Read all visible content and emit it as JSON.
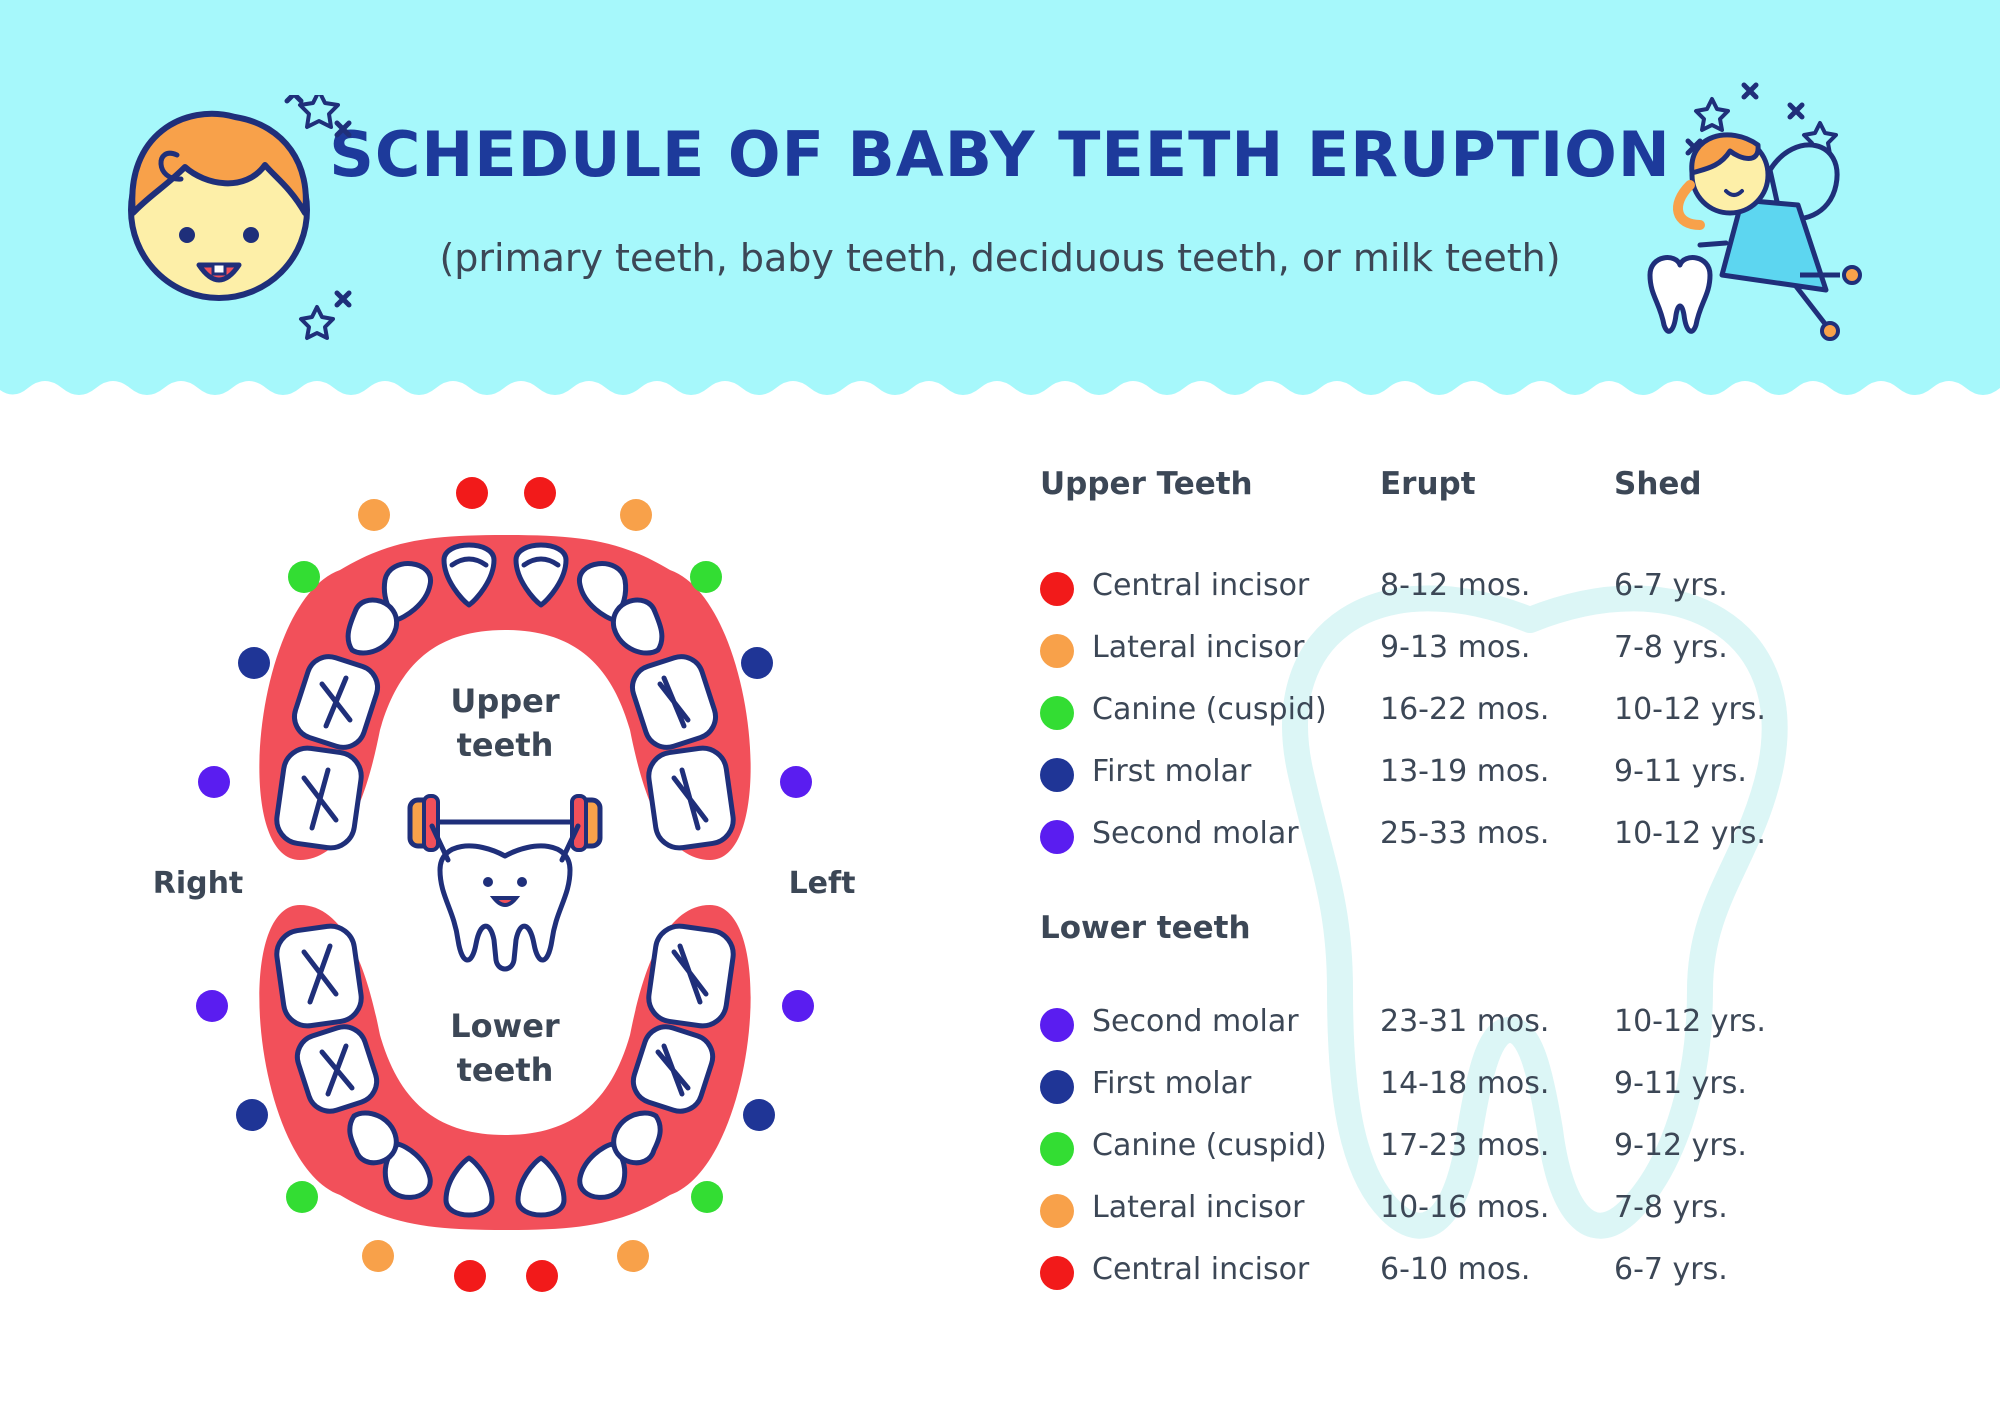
{
  "title": "SCHEDULE OF BABY TEETH ERUPTION",
  "subtitle": "(primary teeth, baby teeth, deciduous teeth, or milk teeth)",
  "colors": {
    "header_bg": "#a6f8fb",
    "title": "#1d3a9b",
    "gum": "#f2505a",
    "outline": "#1f2f7a",
    "central_incisor": "#f21a1a",
    "lateral_incisor": "#f8a14a",
    "canine": "#33dd33",
    "first_molar": "#1f3596",
    "second_molar": "#5a1df0",
    "watermark": "#dcf6f6"
  },
  "diagram": {
    "upper_label": [
      "Upper",
      "teeth"
    ],
    "lower_label": [
      "Lower",
      "teeth"
    ],
    "side_right": "Right",
    "side_left": "Left"
  },
  "table": {
    "col_erupt": "Erupt",
    "col_shed": "Shed",
    "upper_header": "Upper Teeth",
    "lower_header": "Lower teeth",
    "upper_rows": [
      {
        "tooth": "Central incisor",
        "erupt": "8-12 mos.",
        "shed": "6-7 yrs.",
        "color": "#f21a1a"
      },
      {
        "tooth": "Lateral incisor",
        "erupt": "9-13 mos.",
        "shed": "7-8 yrs.",
        "color": "#f8a14a"
      },
      {
        "tooth": "Canine (cuspid)",
        "erupt": "16-22 mos.",
        "shed": "10-12 yrs.",
        "color": "#33dd33"
      },
      {
        "tooth": "First molar",
        "erupt": "13-19 mos.",
        "shed": "9-11 yrs.",
        "color": "#1f3596"
      },
      {
        "tooth": "Second molar",
        "erupt": "25-33 mos.",
        "shed": "10-12 yrs.",
        "color": "#5a1df0"
      }
    ],
    "lower_rows": [
      {
        "tooth": "Second molar",
        "erupt": "23-31 mos.",
        "shed": "10-12 yrs.",
        "color": "#5a1df0"
      },
      {
        "tooth": "First molar",
        "erupt": "14-18 mos.",
        "shed": "9-11 yrs.",
        "color": "#1f3596"
      },
      {
        "tooth": "Canine (cuspid)",
        "erupt": "17-23 mos.",
        "shed": "9-12 yrs.",
        "color": "#33dd33"
      },
      {
        "tooth": "Lateral incisor",
        "erupt": "10-16 mos.",
        "shed": "7-8 yrs.",
        "color": "#f8a14a"
      },
      {
        "tooth": "Central incisor",
        "erupt": "6-10 mos.",
        "shed": "6-7 yrs.",
        "color": "#f21a1a"
      }
    ]
  }
}
